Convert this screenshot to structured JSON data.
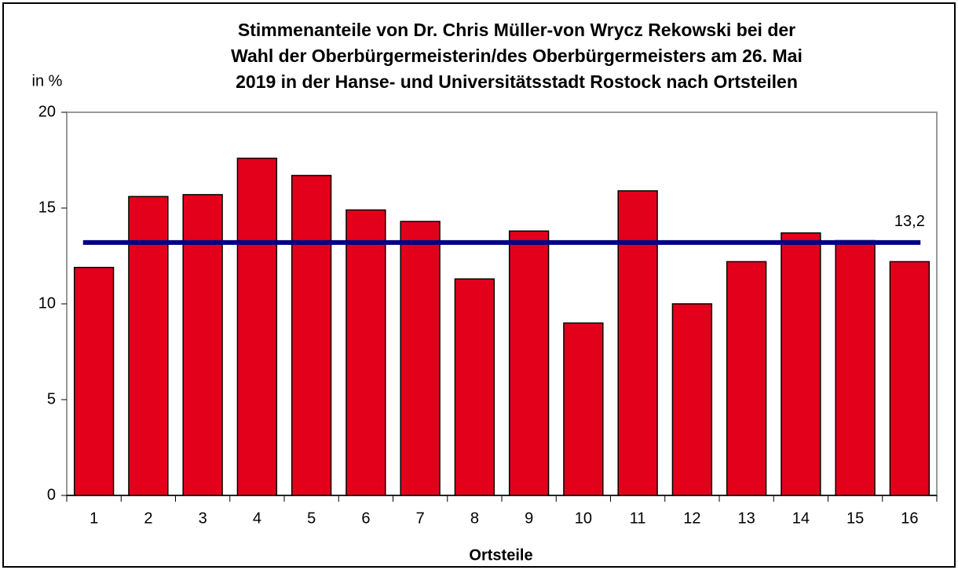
{
  "chart_data": {
    "type": "bar",
    "title": [
      "Stimmenanteile von Dr. Chris Müller-von Wrycz Rekowski bei der",
      "Wahl der Oberbürgermeisterin/des Oberbürgermeisters am 26. Mai",
      "2019 in der Hanse- und Universitätsstadt Rostock nach Ortsteilen"
    ],
    "y_axis_label": "in %",
    "x_axis_label": "Ortsteile",
    "categories": [
      "1",
      "2",
      "3",
      "4",
      "5",
      "6",
      "7",
      "8",
      "9",
      "10",
      "11",
      "12",
      "13",
      "14",
      "15",
      "16"
    ],
    "values": [
      11.9,
      15.6,
      15.7,
      17.6,
      16.7,
      14.9,
      14.3,
      11.3,
      13.8,
      9.0,
      15.9,
      10.0,
      12.2,
      13.7,
      13.3,
      12.2
    ],
    "color": "#e3001b",
    "reference_line": {
      "value": 13.2,
      "label": "13,2",
      "color": "#000080"
    },
    "ylim": [
      0,
      20
    ],
    "yticks": [
      0,
      5,
      10,
      15,
      20
    ],
    "grid": false
  }
}
